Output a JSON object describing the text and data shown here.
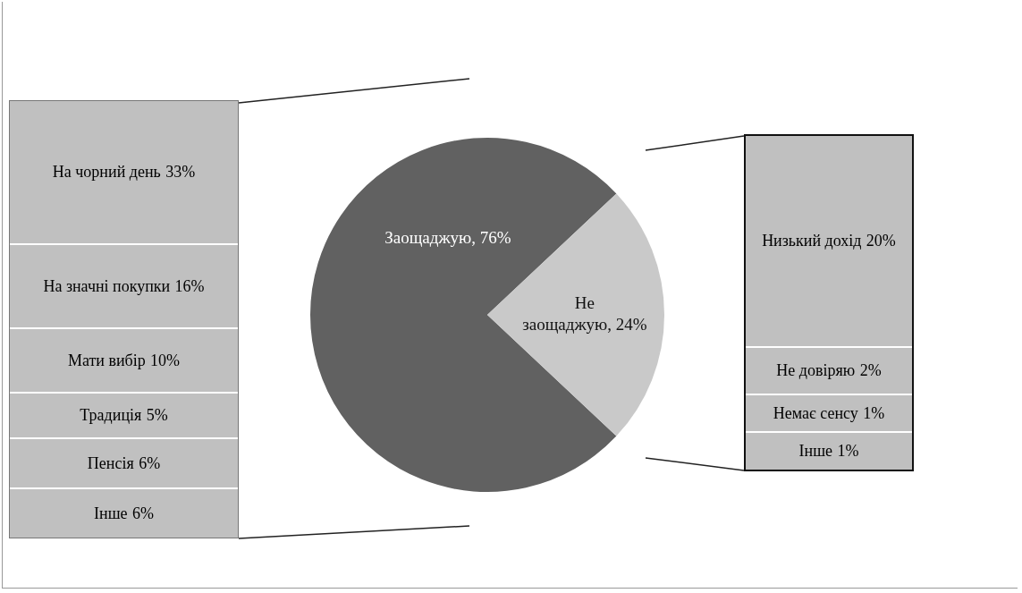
{
  "chart_data": [
    {
      "type": "other",
      "categories": [
        "На чорний день",
        "На значні покупки",
        "Мати вибір",
        "Традиція",
        "Пенсія",
        "Інше"
      ],
      "values": [
        33,
        16,
        10,
        5,
        6,
        6
      ],
      "value_labels": [
        "33%",
        "16%",
        "10%",
        "5%",
        "6%",
        "6%"
      ]
    },
    {
      "type": "pie",
      "categories": [
        "Заощаджую",
        "Не заощаджую"
      ],
      "values": [
        76,
        24
      ],
      "colors": [
        "#616161",
        "#c9c9c9"
      ],
      "value_labels": [
        "76%",
        "24%"
      ],
      "legend": false
    },
    {
      "type": "other",
      "categories": [
        "Низький дохід",
        "Не довіряю",
        "Немає сенсу",
        "Інше"
      ],
      "values": [
        20,
        2,
        1,
        1
      ],
      "value_labels": [
        "20%",
        "2%",
        "1%",
        "1%"
      ]
    }
  ]
}
